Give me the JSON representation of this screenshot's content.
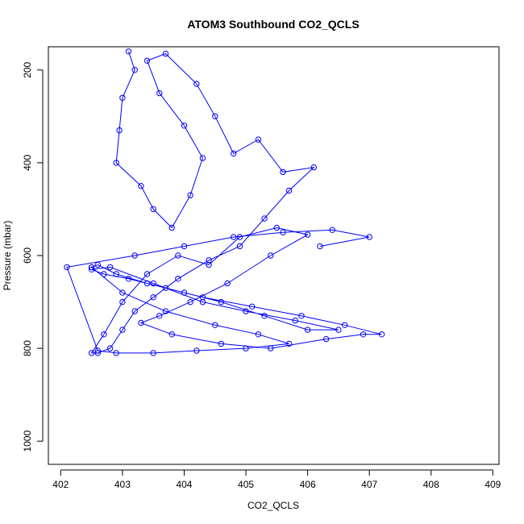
{
  "chart_data": {
    "type": "scatter",
    "title": "ATOM3 Southbound CO2_QCLS",
    "xlabel": "CO2_QCLS",
    "ylabel": "Pressure (mbar)",
    "xlim": [
      401.8,
      409.1
    ],
    "ylim": [
      1050,
      150
    ],
    "y_inverted": true,
    "xticks": [
      402,
      403,
      404,
      405,
      406,
      407,
      408,
      409
    ],
    "yticks": [
      200,
      400,
      600,
      800,
      1000
    ],
    "grid": false,
    "legend": "none",
    "series": [
      {
        "marker": "open-circle",
        "connected": true,
        "color": "#0000ff",
        "x": [
          403.1,
          403.2,
          403.0,
          402.95,
          402.9,
          403.3,
          403.5,
          403.8,
          404.1,
          404.3,
          404.0,
          403.6,
          403.4,
          403.7,
          404.2,
          404.5,
          404.8,
          405.2,
          405.6,
          406.1,
          405.7,
          405.3,
          404.9,
          404.4,
          403.9,
          403.5,
          403.2,
          403.0,
          402.8,
          402.6,
          402.5,
          402.7,
          403.0,
          403.4,
          403.9,
          404.4,
          404.9,
          405.5,
          406.0,
          405.4,
          404.7,
          404.1,
          403.6,
          403.3,
          403.8,
          404.6,
          405.4,
          406.3,
          406.9,
          407.2,
          406.6,
          405.9,
          405.1,
          404.3,
          403.7,
          403.1,
          402.7,
          402.5,
          402.8,
          403.5,
          404.3,
          405.0,
          405.8,
          406.5,
          406.0,
          405.3,
          404.6,
          404.0,
          403.4,
          402.9,
          402.6,
          402.5,
          403.0,
          403.7,
          404.5,
          405.2,
          405.7,
          405.0,
          404.2,
          403.5,
          402.9,
          402.6,
          402.1,
          403.2,
          404.0,
          404.8,
          405.6,
          406.4,
          407.0,
          406.2
        ],
        "y": [
          160,
          200,
          260,
          330,
          400,
          450,
          500,
          540,
          470,
          390,
          320,
          250,
          180,
          165,
          230,
          300,
          380,
          350,
          420,
          410,
          460,
          520,
          580,
          610,
          650,
          690,
          720,
          760,
          800,
          810,
          810,
          770,
          700,
          640,
          600,
          620,
          560,
          540,
          555,
          600,
          660,
          700,
          730,
          745,
          770,
          790,
          800,
          780,
          770,
          770,
          750,
          730,
          710,
          690,
          670,
          650,
          640,
          630,
          625,
          660,
          700,
          720,
          740,
          760,
          760,
          730,
          700,
          680,
          660,
          640,
          620,
          625,
          680,
          720,
          750,
          770,
          790,
          800,
          805,
          810,
          810,
          805,
          625,
          600,
          580,
          560,
          550,
          545,
          560,
          580
        ]
      }
    ]
  }
}
